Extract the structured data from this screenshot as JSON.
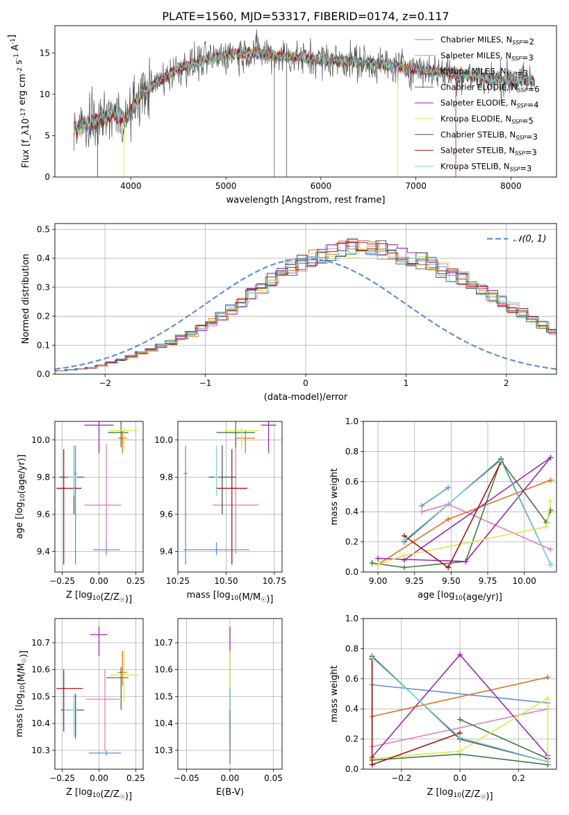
{
  "figure_title": "PLATE=1560, MJD=53317, FIBERID=0174, z=0.117",
  "colors": {
    "chabrier_miles": "#5f8fd6",
    "salpeter_miles": "#e07fbb",
    "kroupa_miles": "#e0701c",
    "chabrier_elodie": "#3f7a3f",
    "salpeter_elodie": "#9b24b0",
    "kroupa_elodie": "#d9e84a",
    "chabrier_stelib": "#505050",
    "salpeter_stelib": "#a51515",
    "kroupa_stelib": "#7fd6da",
    "gauss": "#5f8fd6",
    "grid": "#b0b0b0"
  },
  "chart_data": [
    {
      "id": "spectrum",
      "type": "line",
      "xlabel": "wavelength [Angstrom, rest frame]",
      "ylabel": "Flux [f_λ10^-17 erg cm^-2 s^-1 A^-1]",
      "xlim": [
        3200,
        8480
      ],
      "ylim": [
        0,
        18.3
      ],
      "xticks": [
        4000,
        5000,
        6000,
        7000,
        8000
      ],
      "yticks": [
        0,
        5,
        10,
        15
      ],
      "grid": false,
      "legend_position": "top-right",
      "continuum_anchors": {
        "wavelength": [
          3400,
          3600,
          3800,
          3950,
          4100,
          4300,
          4500,
          4800,
          5000,
          5300,
          5600,
          6000,
          6500,
          7000,
          7400,
          7800,
          8250
        ],
        "flux": [
          5.8,
          6.5,
          7.8,
          7.0,
          10.0,
          11.6,
          13.2,
          14.2,
          14.8,
          15.1,
          14.6,
          14.2,
          13.8,
          13.1,
          12.5,
          11.8,
          11.6
        ]
      },
      "series": [
        {
          "name": "Chabrier MILES, N_SSP=2",
          "color_key": "chabrier_miles"
        },
        {
          "name": "Salpeter MILES, N_SSP=3",
          "color_key": "salpeter_miles"
        },
        {
          "name": "Kroupa MILES, N_SSP=3",
          "color_key": "kroupa_miles"
        },
        {
          "name": "Chabrier ELODIE, N_SSP=6",
          "color_key": "chabrier_elodie"
        },
        {
          "name": "Salpeter ELODIE, N_SSP=4",
          "color_key": "salpeter_elodie"
        },
        {
          "name": "Kroupa ELODIE, N_SSP=5",
          "color_key": "kroupa_elodie"
        },
        {
          "name": "Chabrier STELIB, N_SSP=3",
          "color_key": "chabrier_stelib"
        },
        {
          "name": "Salpeter STELIB, N_SSP=3",
          "color_key": "salpeter_stelib"
        },
        {
          "name": "Kroupa STELIB, N_SSP=3",
          "color_key": "kroupa_stelib"
        }
      ]
    },
    {
      "id": "residuals",
      "type": "area",
      "xlabel": "(data-model)/error",
      "ylabel": "Normed distribution",
      "xlim": [
        -2.5,
        2.5
      ],
      "ylim": [
        0,
        0.52
      ],
      "xticks": [
        -2,
        -1,
        0,
        1,
        2
      ],
      "yticks": [
        0.0,
        0.1,
        0.2,
        0.3,
        0.4,
        0.5
      ],
      "grid": true,
      "legend_position": "top-right",
      "legend_label": "𝒩(0, 1)",
      "bin_width": 0.1,
      "bin_start": -2.5,
      "base_profile": [
        0.012,
        0.015,
        0.018,
        0.022,
        0.03,
        0.04,
        0.05,
        0.06,
        0.072,
        0.085,
        0.098,
        0.11,
        0.125,
        0.14,
        0.16,
        0.18,
        0.2,
        0.225,
        0.25,
        0.275,
        0.3,
        0.325,
        0.35,
        0.37,
        0.385,
        0.4,
        0.41,
        0.42,
        0.43,
        0.435,
        0.44,
        0.435,
        0.43,
        0.42,
        0.41,
        0.4,
        0.39,
        0.375,
        0.36,
        0.345,
        0.33,
        0.31,
        0.29,
        0.27,
        0.25,
        0.23,
        0.21,
        0.19,
        0.17,
        0.15,
        0.13,
        0.115,
        0.1,
        0.088,
        0.076,
        0.066,
        0.056,
        0.048,
        0.04,
        0.034,
        0.028,
        0.024,
        0.02,
        0.017,
        0.015,
        0.013,
        0.012,
        0.011,
        0.01,
        0.009,
        0.008,
        0.007,
        0.007,
        0.006,
        0.006,
        0.005,
        0.005,
        0.005,
        0.004,
        0.004
      ]
    },
    {
      "id": "age_vs_Z",
      "type": "scatter",
      "xlabel": "Z [log10(Z/Z☉)]",
      "ylabel": "age  [log10(age/yr)]",
      "xlim": [
        -0.3,
        0.3
      ],
      "ylim": [
        9.29,
        10.1
      ],
      "xticks": [
        -0.25,
        0.0,
        0.25
      ],
      "yticks": [
        9.4,
        9.6,
        9.8,
        10.0
      ],
      "grid": true,
      "points": [
        {
          "x": 0.05,
          "y": 9.41,
          "xerr": [
            0.09,
            0.09
          ],
          "yerr": [
            0.03,
            0.04
          ],
          "color_key": "chabrier_miles"
        },
        {
          "x": -0.16,
          "y": 9.82,
          "xerr": [
            0.01,
            0.01
          ],
          "yerr": [
            0.49,
            0.15
          ],
          "color_key": "chabrier_miles"
        },
        {
          "x": 0.05,
          "y": 9.65,
          "xerr": [
            0.15,
            0.1
          ],
          "yerr": [
            0.26,
            0.33
          ],
          "color_key": "salpeter_miles"
        },
        {
          "x": 0.16,
          "y": 10.01,
          "xerr": [
            0.03,
            0.03
          ],
          "yerr": [
            0.08,
            0.04
          ],
          "color_key": "kroupa_miles"
        },
        {
          "x": 0.15,
          "y": 10.04,
          "xerr": [
            0.09,
            0.05
          ],
          "yerr": [
            0.08,
            0.06
          ],
          "color_key": "chabrier_elodie"
        },
        {
          "x": 0.0,
          "y": 10.08,
          "xerr": [
            0.1,
            0.1
          ],
          "yerr": [
            0.15,
            0.02
          ],
          "color_key": "salpeter_elodie"
        },
        {
          "x": 0.17,
          "y": 10.05,
          "xerr": [
            0.1,
            0.1
          ],
          "yerr": [
            0.1,
            0.02
          ],
          "color_key": "kroupa_elodie"
        },
        {
          "x": -0.17,
          "y": 9.8,
          "xerr": [
            0.1,
            0.07
          ],
          "yerr": [
            0.2,
            0.17
          ],
          "color_key": "chabrier_stelib"
        },
        {
          "x": -0.24,
          "y": 9.74,
          "xerr": [
            0.05,
            0.12
          ],
          "yerr": [
            0.41,
            0.21
          ],
          "color_key": "salpeter_stelib"
        },
        {
          "x": -0.17,
          "y": 9.8,
          "xerr": [
            0.04,
            0.02
          ],
          "yerr": [
            0.1,
            0.17
          ],
          "color_key": "kroupa_stelib"
        }
      ]
    },
    {
      "id": "age_vs_mass",
      "type": "scatter",
      "xlabel": "mass [log10(M/M☉)]",
      "ylabel": "",
      "xlim": [
        10.25,
        10.79
      ],
      "ylim": [
        9.29,
        10.1
      ],
      "xticks": [
        10.25,
        10.5,
        10.75
      ],
      "yticks": [
        9.4,
        9.6,
        9.8,
        10.0
      ],
      "grid": true,
      "points": [
        {
          "x": 10.45,
          "y": 9.41,
          "xerr": [
            0.17,
            0.17
          ],
          "yerr": [
            0.03,
            0.04
          ],
          "color_key": "chabrier_miles"
        },
        {
          "x": 10.29,
          "y": 9.82,
          "xerr": [
            0.01,
            0.01
          ],
          "yerr": [
            0.49,
            0.15
          ],
          "color_key": "chabrier_miles"
        },
        {
          "x": 10.55,
          "y": 9.65,
          "xerr": [
            0.12,
            0.12
          ],
          "yerr": [
            0.26,
            0.33
          ],
          "color_key": "salpeter_miles"
        },
        {
          "x": 10.6,
          "y": 10.01,
          "xerr": [
            0.05,
            0.05
          ],
          "yerr": [
            0.08,
            0.04
          ],
          "color_key": "kroupa_miles"
        },
        {
          "x": 10.55,
          "y": 10.04,
          "xerr": [
            0.1,
            0.1
          ],
          "yerr": [
            0.08,
            0.06
          ],
          "color_key": "chabrier_elodie"
        },
        {
          "x": 10.72,
          "y": 10.08,
          "xerr": [
            0.04,
            0.04
          ],
          "yerr": [
            0.15,
            0.02
          ],
          "color_key": "salpeter_elodie"
        },
        {
          "x": 10.58,
          "y": 10.05,
          "xerr": [
            0.09,
            0.09
          ],
          "yerr": [
            0.1,
            0.02
          ],
          "color_key": "kroupa_elodie"
        },
        {
          "x": 10.48,
          "y": 9.8,
          "xerr": [
            0.07,
            0.07
          ],
          "yerr": [
            0.2,
            0.17
          ],
          "color_key": "chabrier_stelib"
        },
        {
          "x": 10.53,
          "y": 9.74,
          "xerr": [
            0.08,
            0.08
          ],
          "yerr": [
            0.41,
            0.21
          ],
          "color_key": "salpeter_stelib"
        },
        {
          "x": 10.45,
          "y": 9.8,
          "xerr": [
            0.01,
            0.01
          ],
          "yerr": [
            0.1,
            0.17
          ],
          "color_key": "kroupa_stelib"
        }
      ]
    },
    {
      "id": "mass_weight_vs_age",
      "type": "line",
      "xlabel": "age  [log10(age/yr)]",
      "ylabel": "mass weight",
      "xlim": [
        8.9,
        10.22
      ],
      "ylim": [
        0,
        1
      ],
      "xticks": [
        9.0,
        9.25,
        9.5,
        9.75,
        10.0
      ],
      "yticks": [
        0.0,
        0.2,
        0.4,
        0.6,
        0.8,
        1.0
      ],
      "grid": true,
      "series": [
        {
          "color_key": "chabrier_miles",
          "x": [
            9.3,
            9.48
          ],
          "y": [
            0.44,
            0.56
          ]
        },
        {
          "color_key": "salpeter_miles",
          "x": [
            9.3,
            9.48,
            10.18
          ],
          "y": [
            0.4,
            0.45,
            0.15
          ]
        },
        {
          "color_key": "kroupa_miles",
          "x": [
            9.0,
            9.48,
            10.18
          ],
          "y": [
            0.05,
            0.35,
            0.61
          ]
        },
        {
          "color_key": "chabrier_elodie",
          "x": [
            8.96,
            9.18,
            9.6,
            9.84,
            10.15,
            10.18
          ],
          "y": [
            0.06,
            0.03,
            0.07,
            0.74,
            0.33,
            0.41
          ]
        },
        {
          "color_key": "salpeter_elodie",
          "x": [
            9.0,
            9.6,
            10.18,
            9.18
          ],
          "y": [
            0.09,
            0.07,
            0.76,
            0.08
          ]
        },
        {
          "color_key": "kroupa_elodie",
          "x": [
            9.0,
            9.18,
            10.15,
            10.18
          ],
          "y": [
            0.05,
            0.11,
            0.3,
            0.47
          ]
        },
        {
          "color_key": "chabrier_stelib",
          "x": [
            9.18,
            9.84,
            10.18
          ],
          "y": [
            0.2,
            0.75,
            0.05
          ]
        },
        {
          "color_key": "salpeter_stelib",
          "x": [
            9.18,
            9.48,
            9.84
          ],
          "y": [
            0.24,
            0.03,
            0.73
          ]
        },
        {
          "color_key": "kroupa_stelib",
          "x": [
            9.18,
            9.84,
            10.18
          ],
          "y": [
            0.21,
            0.74,
            0.05
          ]
        }
      ]
    },
    {
      "id": "mass_vs_Z",
      "type": "scatter",
      "xlabel": "Z [log10(Z/Z☉)]",
      "ylabel": "mass [log10(M/M☉)]",
      "xlim": [
        -0.3,
        0.3
      ],
      "ylim": [
        10.23,
        10.79
      ],
      "xticks": [
        -0.25,
        0.0,
        0.25
      ],
      "yticks": [
        10.3,
        10.4,
        10.5,
        10.6,
        10.7
      ],
      "grid": true,
      "points": [
        {
          "x": 0.05,
          "y": 10.29,
          "xerr": [
            0.12,
            0.1
          ],
          "yerr": [
            0.01,
            0.01
          ],
          "color_key": "chabrier_miles"
        },
        {
          "x": -0.16,
          "y": 10.45,
          "xerr": [
            0.01,
            0.01
          ],
          "yerr": [
            0.11,
            0.01
          ],
          "color_key": "chabrier_miles"
        },
        {
          "x": 0.04,
          "y": 10.49,
          "xerr": [
            0.13,
            0.1
          ],
          "yerr": [
            0.19,
            0.11
          ],
          "color_key": "salpeter_miles"
        },
        {
          "x": 0.16,
          "y": 10.59,
          "xerr": [
            0.03,
            0.03
          ],
          "yerr": [
            0.05,
            0.08
          ],
          "color_key": "kroupa_miles"
        },
        {
          "x": 0.15,
          "y": 10.57,
          "xerr": [
            0.1,
            0.05
          ],
          "yerr": [
            0.12,
            0.04
          ],
          "color_key": "chabrier_elodie"
        },
        {
          "x": 0.0,
          "y": 10.73,
          "xerr": [
            0.06,
            0.06
          ],
          "yerr": [
            0.08,
            0.03
          ],
          "color_key": "salpeter_elodie"
        },
        {
          "x": 0.17,
          "y": 10.58,
          "xerr": [
            0.1,
            0.1
          ],
          "yerr": [
            0.1,
            0.09
          ],
          "color_key": "kroupa_elodie"
        },
        {
          "x": -0.16,
          "y": 10.45,
          "xerr": [
            0.1,
            0.06
          ],
          "yerr": [
            0.1,
            0.06
          ],
          "color_key": "chabrier_stelib"
        },
        {
          "x": -0.24,
          "y": 10.53,
          "xerr": [
            0.05,
            0.13
          ],
          "yerr": [
            0.16,
            0.07
          ],
          "color_key": "salpeter_stelib"
        },
        {
          "x": -0.17,
          "y": 10.45,
          "xerr": [
            0.07,
            0.02
          ],
          "yerr": [
            0.1,
            0.06
          ],
          "color_key": "kroupa_stelib"
        }
      ]
    },
    {
      "id": "mass_vs_ebv",
      "type": "scatter",
      "xlabel": "E(B-V)",
      "ylabel": "",
      "xlim": [
        -0.06,
        0.06
      ],
      "ylim": [
        10.23,
        10.79
      ],
      "xticks": [
        -0.05,
        0.0,
        0.05
      ],
      "yticks": [
        10.3,
        10.4,
        10.5,
        10.6,
        10.7
      ],
      "grid": true,
      "points": [
        {
          "x": 0.0,
          "y": 10.5,
          "yerr": [
            0.25,
            0.26
          ],
          "color_key": "salpeter_elodie"
        },
        {
          "x": 0.0,
          "y": 10.5,
          "yerr": [
            0.17,
            0.17
          ],
          "color_key": "kroupa_elodie"
        },
        {
          "x": 0.0,
          "y": 10.45,
          "yerr": [
            0.12,
            0.08
          ],
          "color_key": "chabrier_elodie"
        },
        {
          "x": 0.0,
          "y": 10.45,
          "yerr": [
            0.1,
            0.08
          ],
          "color_key": "kroupa_stelib"
        },
        {
          "x": 0.0,
          "y": 10.4,
          "yerr": [
            0.15,
            0.05
          ],
          "color_key": "chabrier_miles"
        }
      ]
    },
    {
      "id": "mass_weight_vs_Z",
      "type": "line",
      "xlabel": "Z [log10(Z/Z☉)]",
      "ylabel": "mass weight",
      "xlim": [
        -0.33,
        0.33
      ],
      "ylim": [
        0,
        1
      ],
      "xticks": [
        -0.2,
        0.0,
        0.2
      ],
      "yticks": [
        0.0,
        0.2,
        0.4,
        0.6,
        0.8,
        1.0
      ],
      "grid": true,
      "series": [
        {
          "color_key": "chabrier_miles",
          "x": [
            -0.3,
            0.3
          ],
          "y": [
            0.56,
            0.44
          ]
        },
        {
          "color_key": "salpeter_miles",
          "x": [
            -0.3,
            0.3
          ],
          "y": [
            0.15,
            0.4
          ]
        },
        {
          "color_key": "kroupa_miles",
          "x": [
            -0.3,
            0.3
          ],
          "y": [
            0.35,
            0.61
          ]
        },
        {
          "color_key": "chabrier_elodie",
          "x": [
            -0.3,
            -0.3,
            0.0,
            0.3,
            0.3,
            0.0
          ],
          "y": [
            0.74,
            0.06,
            0.1,
            0.03,
            0.07,
            0.33
          ]
        },
        {
          "color_key": "salpeter_elodie",
          "x": [
            -0.3,
            0.0,
            0.3,
            0.3
          ],
          "y": [
            0.08,
            0.76,
            0.09,
            0.07
          ]
        },
        {
          "color_key": "kroupa_elodie",
          "x": [
            -0.3,
            0.0,
            0.3,
            0.3
          ],
          "y": [
            0.07,
            0.12,
            0.47,
            0.05
          ]
        },
        {
          "color_key": "chabrier_stelib",
          "x": [
            -0.3,
            0.0,
            0.3
          ],
          "y": [
            0.75,
            0.2,
            0.05
          ]
        },
        {
          "color_key": "salpeter_stelib",
          "x": [
            -0.3,
            -0.3,
            0.0
          ],
          "y": [
            0.73,
            0.03,
            0.24
          ]
        },
        {
          "color_key": "kroupa_stelib",
          "x": [
            -0.3,
            0.0,
            0.3
          ],
          "y": [
            0.74,
            0.21,
            0.05
          ]
        }
      ]
    }
  ]
}
